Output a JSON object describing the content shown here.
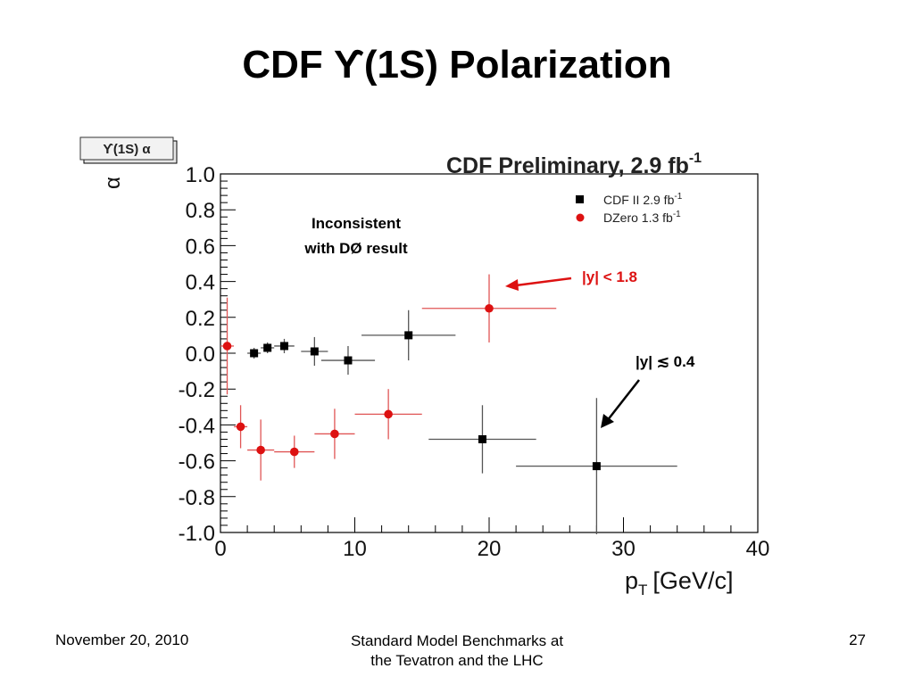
{
  "slide": {
    "title": "CDF ϒ(1S) Polarization",
    "footer_date": "November 20, 2010",
    "footer_center_line1": "Standard Model Benchmarks at",
    "footer_center_line2": "the Tevatron and the LHC",
    "page_number": "27"
  },
  "chart_data": {
    "type": "scatter",
    "title": "CDF Preliminary, 2.9 fb",
    "title_superscript": "-1",
    "histogram_label": "ϒ(1S) α",
    "xlabel": "p",
    "xlabel_subscript": "T",
    "xlabel_unit": "[GeV/c]",
    "ylabel": "α",
    "xlim": [
      0,
      40
    ],
    "ylim": [
      -1.0,
      1.0
    ],
    "x_ticks": [
      "0",
      "10",
      "20",
      "30",
      "40"
    ],
    "y_ticks": [
      "-1.0",
      "-0.8",
      "-0.6",
      "-0.4",
      "-0.2",
      "0.0",
      "0.2",
      "0.4",
      "0.6",
      "0.8",
      "1.0"
    ],
    "legend_position": "top-right",
    "series": [
      {
        "name": "CDF II 2.9 fb",
        "name_superscript": "-1",
        "marker": "square",
        "color": "#000000",
        "points": [
          {
            "x": 2.5,
            "y": 0.0,
            "xerr": 0.5,
            "yerr": 0.03
          },
          {
            "x": 3.5,
            "y": 0.03,
            "xerr": 0.5,
            "yerr": 0.03
          },
          {
            "x": 4.75,
            "y": 0.04,
            "xerr": 0.75,
            "yerr": 0.04
          },
          {
            "x": 7.0,
            "y": 0.01,
            "xerr": 1.0,
            "yerr": 0.08
          },
          {
            "x": 9.5,
            "y": -0.04,
            "xerr": 2.0,
            "yerr": 0.08
          },
          {
            "x": 14.0,
            "y": 0.1,
            "xerr": 3.5,
            "yerr": 0.14
          },
          {
            "x": 19.5,
            "y": -0.48,
            "xerr": 4.0,
            "yerr": 0.19
          },
          {
            "x": 28.0,
            "y": -0.63,
            "xerr": 6.0,
            "yerr": 0.38
          }
        ]
      },
      {
        "name": "DZero 1.3 fb",
        "name_superscript": "-1",
        "marker": "circle",
        "color": "#dd1111",
        "points": [
          {
            "x": 0.5,
            "y": 0.04,
            "xerr": 0.5,
            "yerr": 0.27
          },
          {
            "x": 1.5,
            "y": -0.41,
            "xerr": 0.5,
            "yerr": 0.12
          },
          {
            "x": 3.0,
            "y": -0.54,
            "xerr": 1.0,
            "yerr": 0.17
          },
          {
            "x": 5.5,
            "y": -0.55,
            "xerr": 1.5,
            "yerr": 0.09
          },
          {
            "x": 8.5,
            "y": -0.45,
            "xerr": 1.5,
            "yerr": 0.14
          },
          {
            "x": 12.5,
            "y": -0.34,
            "xerr": 2.5,
            "yerr": 0.14
          },
          {
            "x": 20.0,
            "y": 0.25,
            "xerr": 5.0,
            "yerr": 0.19
          }
        ]
      }
    ],
    "annotations": {
      "inconsistent_line1": "Inconsistent",
      "inconsistent_line2": "with DØ result",
      "red_rapidity_label": "|y| < 1.8",
      "black_rapidity_label": "|y| ≲ 0.4"
    }
  }
}
